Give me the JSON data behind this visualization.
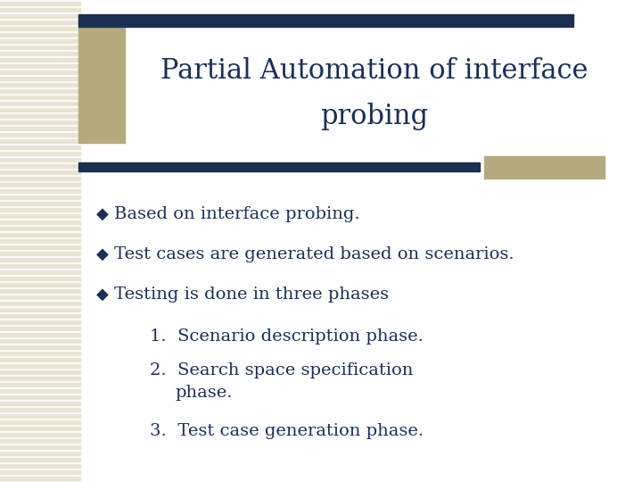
{
  "title_line1": "Partial Automation of interface",
  "title_line2": "probing",
  "title_color": "#1a2f5a",
  "title_fontsize": 22,
  "bg_color": "#ffffff",
  "accent_color": "#b5aa7e",
  "line_color": "#1c2e52",
  "bullet_color": "#1a2f5a",
  "text_color": "#1a2f5a",
  "bullet_fontsize": 14,
  "numbered_fontsize": 14,
  "bullet_char": "◆",
  "bullets": [
    "Based on interface probing.",
    "Test cases are generated based on scenarios.",
    "Testing is done in three phases"
  ],
  "numbered_1": "1.  Scenario description phase.",
  "numbered_2a": "2.  Search space specification",
  "numbered_2b": "      phase.",
  "numbered_3": "3.  Test case generation phase.",
  "stripe_color": "#d8d4c2",
  "stripe_bg_color": "#e8e4d4"
}
